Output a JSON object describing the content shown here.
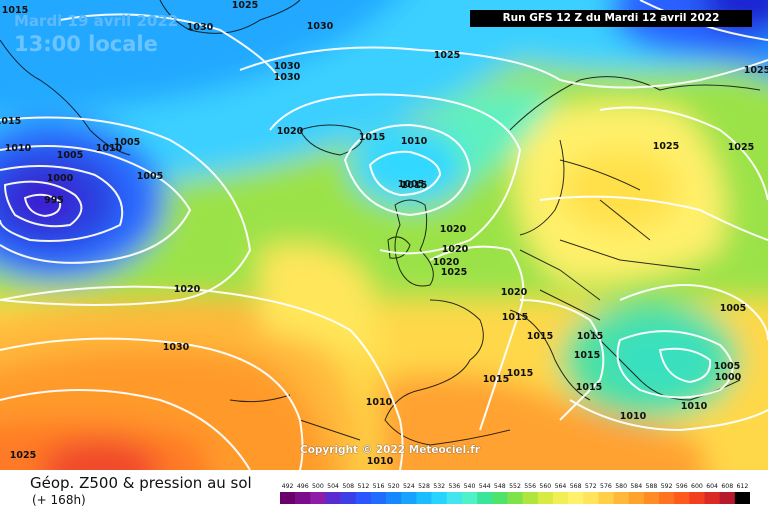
{
  "header": {
    "date": "Mardi 19 avril 2022",
    "time": "13:00 locale",
    "run": "Run GFS 12 Z du Mardi 12 avril 2022"
  },
  "copyright": "Copyright © 2022 Meteociel.fr",
  "footer": {
    "title": "Géop. Z500 & pression au sol",
    "subtitle": "(+ 168h)"
  },
  "legend": {
    "values": [
      "492",
      "496",
      "500",
      "504",
      "508",
      "512",
      "516",
      "520",
      "524",
      "528",
      "532",
      "536",
      "540",
      "544",
      "548",
      "552",
      "556",
      "560",
      "564",
      "568",
      "572",
      "576",
      "580",
      "584",
      "588",
      "592",
      "596",
      "600",
      "604",
      "608",
      "612"
    ],
    "colors": [
      "#6b006b",
      "#7c0d8a",
      "#8f1ba8",
      "#5a2bd1",
      "#3c3fe6",
      "#2a55ff",
      "#1f6cff",
      "#1688ff",
      "#16a3ff",
      "#1cbdff",
      "#27d3ff",
      "#44e5f0",
      "#4ef1c8",
      "#39e59b",
      "#4fe36b",
      "#7ee24a",
      "#aee53e",
      "#d6ec45",
      "#f1ef55",
      "#fff26a",
      "#ffe45c",
      "#ffcf48",
      "#ffb838",
      "#ffa32c",
      "#ff8c25",
      "#ff7320",
      "#ff5a1d",
      "#f23f1d",
      "#d92a24",
      "#b8182c",
      "#000000"
    ]
  },
  "isobars": [
    "1015",
    "1030",
    "1025",
    "1030",
    "1030",
    "1030",
    "1025",
    "1025",
    "1015",
    "1020",
    "1015",
    "1010",
    "1005",
    "1005",
    "1000",
    "995",
    "1005",
    "1010",
    "1015",
    "1010",
    "1005",
    "1020",
    "1020",
    "1020",
    "1020",
    "1025",
    "1025",
    "1025",
    "1020",
    "1015",
    "1015",
    "1015",
    "1015",
    "1005",
    "1005",
    "1000",
    "1015",
    "1010",
    "1030",
    "1015",
    "1015",
    "1010",
    "1010",
    "1025",
    "1010"
  ]
}
